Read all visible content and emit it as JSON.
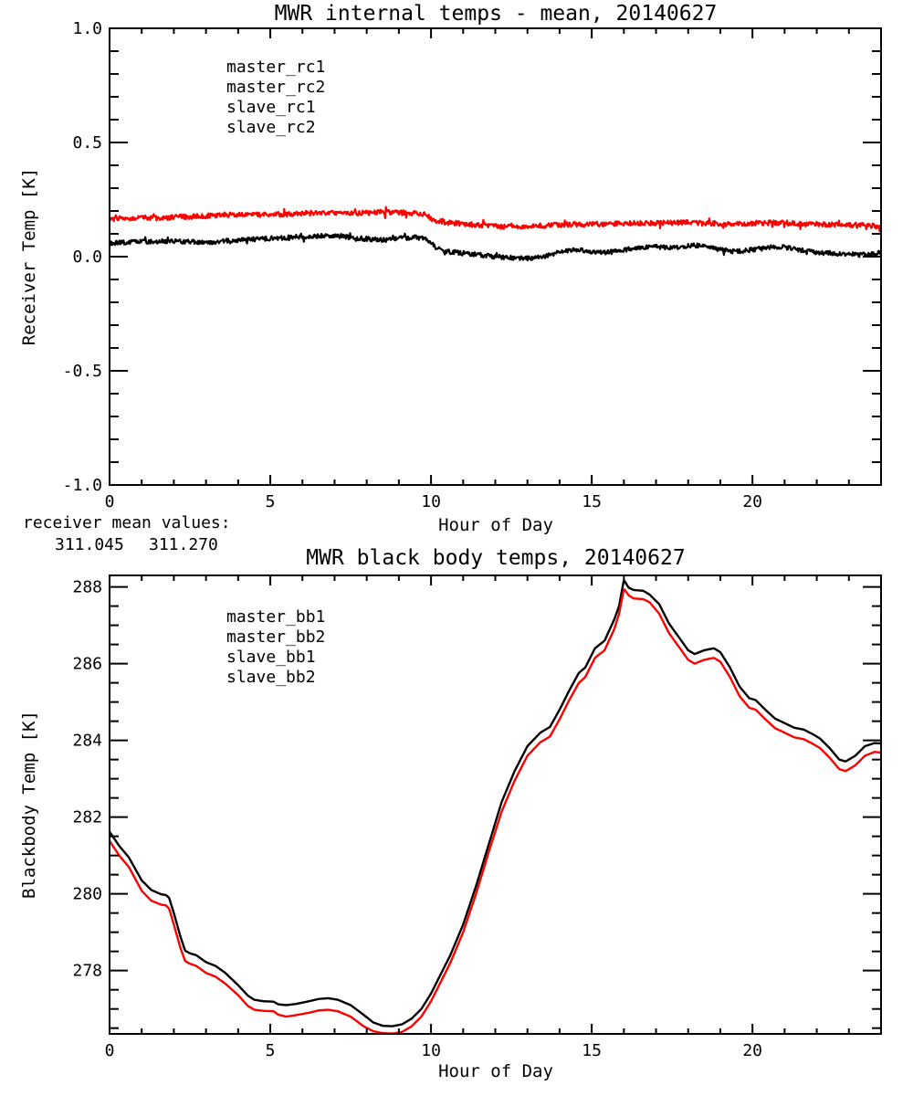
{
  "colors": {
    "black": "#000000",
    "red": "#ff0000",
    "blue": "#2222cc",
    "green": "#22cc22",
    "background": "#ffffff"
  },
  "annotations": {
    "receiver_mean_label": "receiver mean values:",
    "mean_values": [
      {
        "text": "311.045",
        "color": "#000000"
      },
      {
        "text": "311.270",
        "color": "#ff0000"
      }
    ]
  },
  "chart_data": [
    {
      "type": "line",
      "title": "MWR internal temps - mean, 20140627",
      "xlabel": "Hour of Day",
      "ylabel": "Receiver Temp [K]",
      "xlim": [
        0,
        24
      ],
      "ylim": [
        -1.0,
        1.0
      ],
      "xticks_major": [
        0,
        5,
        10,
        15,
        20
      ],
      "xtick_minor_step": 1,
      "yticks_major": [
        1.0,
        0.5,
        0.0,
        -0.5,
        -1.0
      ],
      "ytick_labels": [
        "1.0",
        "0.5",
        "0.0",
        "-0.5",
        "-1.0"
      ],
      "ytick_minor_step": 0.1,
      "grid": false,
      "legend_position": "upper-left-inside",
      "legend": [
        {
          "label": "master_rc1",
          "color": "#000000"
        },
        {
          "label": "master_rc2",
          "color": "#ff0000"
        },
        {
          "label": "slave_rc1",
          "color": "#2222cc"
        },
        {
          "label": "slave_rc2",
          "color": "#22cc22"
        }
      ],
      "series": [
        {
          "name": "master_rc1",
          "color": "#000000",
          "noise": 0.01,
          "x": [
            0,
            0.5,
            1,
            1.5,
            2,
            2.5,
            3,
            3.5,
            4,
            4.5,
            5,
            5.5,
            6,
            6.5,
            7,
            7.3,
            7.6,
            8,
            8.5,
            9,
            9.5,
            9.9,
            10.2,
            10.5,
            11,
            11.5,
            12,
            12.5,
            13,
            13.5,
            14,
            14.5,
            15,
            15.5,
            16,
            16.5,
            17,
            17.5,
            18,
            18.3,
            18.6,
            19,
            19.5,
            20,
            20.5,
            21,
            21.5,
            22,
            22.5,
            23,
            23.5,
            24
          ],
          "y": [
            0.058,
            0.062,
            0.065,
            0.066,
            0.068,
            0.064,
            0.062,
            0.068,
            0.073,
            0.076,
            0.08,
            0.084,
            0.088,
            0.09,
            0.093,
            0.088,
            0.082,
            0.078,
            0.072,
            0.08,
            0.085,
            0.075,
            0.035,
            0.022,
            0.015,
            0.008,
            0.0,
            -0.005,
            -0.008,
            0.0,
            0.02,
            0.03,
            0.022,
            0.018,
            0.03,
            0.04,
            0.042,
            0.038,
            0.046,
            0.05,
            0.044,
            0.03,
            0.022,
            0.03,
            0.04,
            0.042,
            0.028,
            0.018,
            0.014,
            0.01,
            0.008,
            0.018
          ]
        },
        {
          "name": "master_rc2",
          "color": "#ff0000",
          "noise": 0.011,
          "x": [
            0,
            0.5,
            1,
            1.5,
            2,
            2.5,
            3,
            3.5,
            4,
            4.5,
            5,
            5.5,
            6,
            6.5,
            7,
            7.5,
            8,
            8.5,
            9,
            9.5,
            9.8,
            10.1,
            10.5,
            11,
            11.5,
            12,
            12.5,
            13,
            13.5,
            14,
            14.5,
            15,
            15.5,
            16,
            16.5,
            17,
            17.5,
            18,
            18.5,
            19,
            19.5,
            20,
            20.5,
            21,
            21.5,
            22,
            22.5,
            23,
            23.5,
            24
          ],
          "y": [
            0.162,
            0.168,
            0.17,
            0.168,
            0.172,
            0.175,
            0.178,
            0.182,
            0.185,
            0.183,
            0.186,
            0.185,
            0.19,
            0.192,
            0.194,
            0.19,
            0.192,
            0.195,
            0.192,
            0.19,
            0.186,
            0.158,
            0.15,
            0.144,
            0.138,
            0.133,
            0.131,
            0.133,
            0.136,
            0.139,
            0.141,
            0.142,
            0.143,
            0.145,
            0.147,
            0.146,
            0.148,
            0.15,
            0.147,
            0.144,
            0.142,
            0.146,
            0.148,
            0.148,
            0.144,
            0.142,
            0.14,
            0.139,
            0.137,
            0.132
          ]
        }
      ]
    },
    {
      "type": "line",
      "title": "MWR black body temps, 20140627",
      "xlabel": "Hour of Day",
      "ylabel": "Blackbody Temp [K]",
      "xlim": [
        0,
        24
      ],
      "ylim": [
        276.35,
        288.3
      ],
      "xticks_major": [
        0,
        5,
        10,
        15,
        20
      ],
      "xtick_minor_step": 1,
      "yticks_major": [
        278,
        280,
        282,
        284,
        286,
        288
      ],
      "ytick_labels": [
        "278",
        "280",
        "282",
        "284",
        "286",
        "288"
      ],
      "ytick_minor_step": 0.5,
      "grid": false,
      "legend_position": "upper-left-inside",
      "legend": [
        {
          "label": "master_bb1",
          "color": "#000000"
        },
        {
          "label": "master_bb2",
          "color": "#ff0000"
        },
        {
          "label": "slave_bb1",
          "color": "#2222cc"
        },
        {
          "label": "slave_bb2",
          "color": "#22cc22"
        }
      ],
      "series": [
        {
          "name": "master_bb1",
          "color": "#000000",
          "noise": 0,
          "x": [
            0,
            0.3,
            0.6,
            1.0,
            1.3,
            1.6,
            1.75,
            1.85,
            2.0,
            2.2,
            2.35,
            2.5,
            2.7,
            3.0,
            3.3,
            3.6,
            4.0,
            4.3,
            4.5,
            4.8,
            5.1,
            5.25,
            5.5,
            5.8,
            6.2,
            6.5,
            6.8,
            7.1,
            7.5,
            7.9,
            8.2,
            8.5,
            8.8,
            9.1,
            9.4,
            9.7,
            10.0,
            10.3,
            10.6,
            11.0,
            11.4,
            11.8,
            12.2,
            12.6,
            13.0,
            13.4,
            13.7,
            14.0,
            14.3,
            14.6,
            14.8,
            15.1,
            15.4,
            15.7,
            15.85,
            16.0,
            16.15,
            16.3,
            16.6,
            16.8,
            17.1,
            17.4,
            17.7,
            18.0,
            18.2,
            18.5,
            18.8,
            19.0,
            19.3,
            19.6,
            19.9,
            20.1,
            20.4,
            20.7,
            21.0,
            21.3,
            21.6,
            21.9,
            22.1,
            22.4,
            22.7,
            22.9,
            23.2,
            23.5,
            23.8,
            24
          ],
          "y": [
            281.62,
            281.25,
            280.95,
            280.35,
            280.1,
            279.99,
            279.97,
            279.9,
            279.5,
            278.9,
            278.52,
            278.45,
            278.4,
            278.22,
            278.12,
            277.94,
            277.62,
            277.35,
            277.24,
            277.2,
            277.19,
            277.12,
            277.1,
            277.13,
            277.2,
            277.26,
            277.28,
            277.24,
            277.1,
            276.85,
            276.65,
            276.56,
            276.55,
            276.6,
            276.75,
            277.0,
            277.4,
            277.9,
            278.4,
            279.2,
            280.2,
            281.3,
            282.4,
            283.2,
            283.85,
            284.2,
            284.35,
            284.8,
            285.3,
            285.76,
            285.9,
            286.4,
            286.6,
            287.15,
            287.5,
            288.18,
            287.98,
            287.92,
            287.9,
            287.8,
            287.55,
            287.05,
            286.7,
            286.35,
            286.25,
            286.35,
            286.4,
            286.3,
            285.9,
            285.4,
            285.1,
            285.05,
            284.8,
            284.57,
            284.45,
            284.33,
            284.28,
            284.15,
            284.05,
            283.8,
            283.5,
            283.45,
            283.6,
            283.85,
            283.93,
            283.92
          ]
        },
        {
          "name": "master_bb2",
          "color": "#ff0000",
          "noise": 0,
          "x": [
            0,
            0.3,
            0.6,
            1.0,
            1.3,
            1.6,
            1.75,
            1.85,
            2.0,
            2.2,
            2.35,
            2.5,
            2.7,
            3.0,
            3.3,
            3.6,
            4.0,
            4.3,
            4.5,
            4.8,
            5.1,
            5.25,
            5.5,
            5.8,
            6.2,
            6.5,
            6.8,
            7.1,
            7.5,
            7.9,
            8.2,
            8.5,
            8.8,
            9.1,
            9.4,
            9.7,
            10.0,
            10.3,
            10.6,
            11.0,
            11.4,
            11.8,
            12.2,
            12.6,
            13.0,
            13.4,
            13.7,
            14.0,
            14.3,
            14.6,
            14.8,
            15.1,
            15.4,
            15.7,
            15.85,
            16.0,
            16.15,
            16.3,
            16.6,
            16.8,
            17.1,
            17.4,
            17.7,
            18.0,
            18.2,
            18.5,
            18.8,
            19.0,
            19.3,
            19.6,
            19.9,
            20.1,
            20.4,
            20.7,
            21.0,
            21.3,
            21.6,
            21.9,
            22.1,
            22.4,
            22.7,
            22.9,
            23.2,
            23.5,
            23.8,
            24
          ],
          "y": [
            281.38,
            281.0,
            280.7,
            280.08,
            279.82,
            279.72,
            279.7,
            279.62,
            279.2,
            278.6,
            278.25,
            278.18,
            278.12,
            277.94,
            277.84,
            277.66,
            277.36,
            277.08,
            276.98,
            276.95,
            276.94,
            276.85,
            276.8,
            276.84,
            276.9,
            276.96,
            276.98,
            276.94,
            276.8,
            276.55,
            276.42,
            276.37,
            276.36,
            276.4,
            276.55,
            276.8,
            277.2,
            277.7,
            278.2,
            279.0,
            280.0,
            281.1,
            282.15,
            282.95,
            283.6,
            283.95,
            284.1,
            284.55,
            285.05,
            285.5,
            285.65,
            286.15,
            286.35,
            286.9,
            287.3,
            287.95,
            287.78,
            287.7,
            287.68,
            287.6,
            287.3,
            286.8,
            286.45,
            286.1,
            286.0,
            286.1,
            286.15,
            286.05,
            285.65,
            285.15,
            284.85,
            284.8,
            284.55,
            284.32,
            284.2,
            284.08,
            284.03,
            283.9,
            283.8,
            283.55,
            283.25,
            283.2,
            283.35,
            283.6,
            283.7,
            283.68
          ]
        }
      ]
    }
  ]
}
